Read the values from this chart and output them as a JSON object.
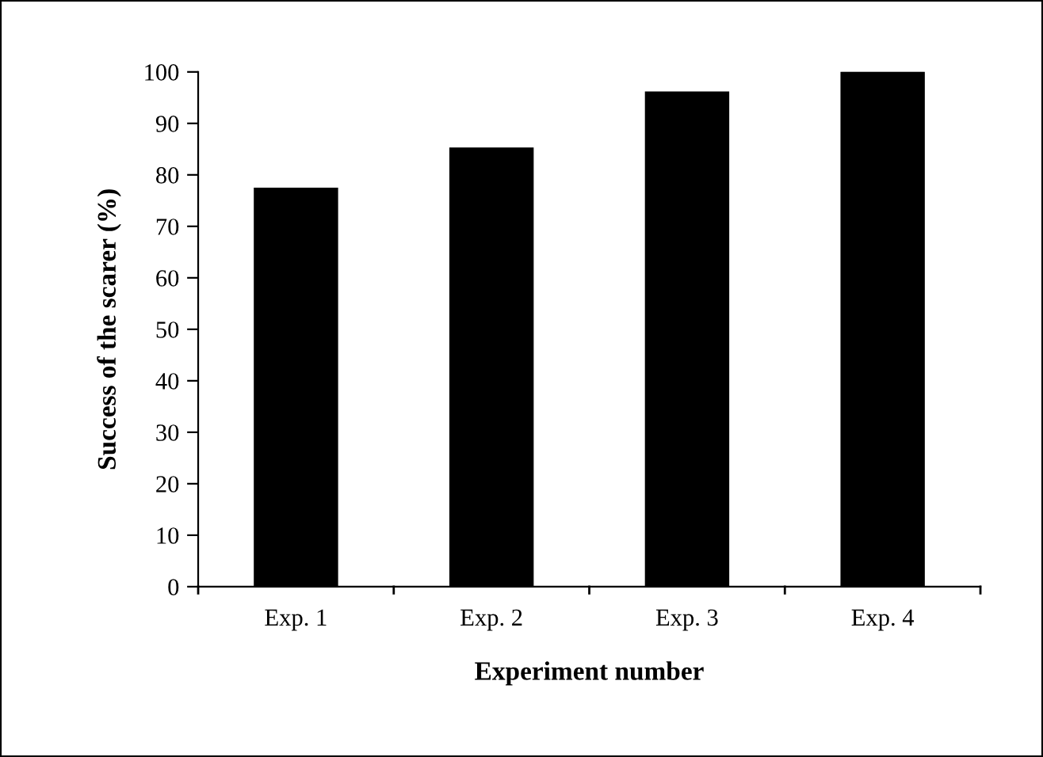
{
  "chart_data": {
    "type": "bar",
    "xlabel": "Experiment number",
    "ylabel": "Success of the scarer (%)",
    "categories": [
      "Exp. 1",
      "Exp. 2",
      "Exp. 3",
      "Exp. 4"
    ],
    "values": [
      77.3,
      85.1,
      96.0,
      100
    ],
    "color": "#000000",
    "ylim": [
      0,
      100
    ],
    "yticks": [
      0,
      10,
      20,
      30,
      40,
      50,
      60,
      70,
      80,
      90,
      100
    ],
    "grid": false,
    "legend": false
  }
}
